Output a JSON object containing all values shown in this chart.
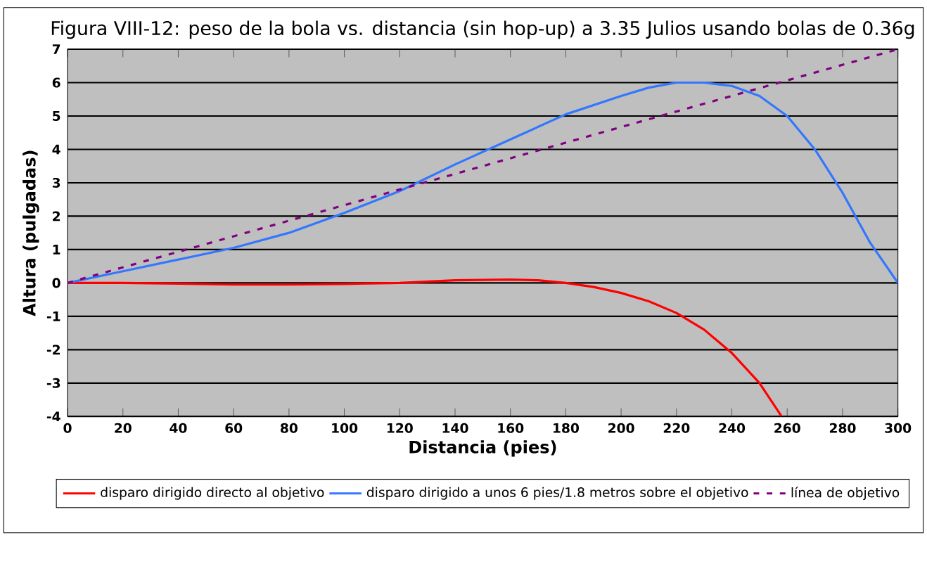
{
  "chart_data": {
    "type": "line",
    "title": "Figura VIII-12: peso de la bola vs. distancia (sin hop-up) a 3.35 Julios usando bolas de 0.36g",
    "xlabel": "Distancia (pies)",
    "ylabel": "Altura (pulgadas)",
    "xlim": [
      0,
      300
    ],
    "xticks": [
      0,
      20,
      40,
      60,
      80,
      100,
      120,
      140,
      160,
      180,
      200,
      220,
      240,
      260,
      280,
      300
    ],
    "ylim": [
      -4,
      7
    ],
    "yticks": [
      -4,
      -3,
      -2,
      -1,
      0,
      1,
      2,
      3,
      4,
      5,
      6,
      7
    ],
    "grid": "y",
    "legend": "bottom",
    "series": [
      {
        "name": "disparo dirigido directo al objetivo",
        "color": "#ff0000",
        "line_style": "solid",
        "x": [
          0,
          20,
          40,
          60,
          80,
          100,
          120,
          140,
          160,
          170,
          180,
          190,
          200,
          210,
          220,
          230,
          240,
          250,
          258
        ],
        "values": [
          0,
          0,
          -0.02,
          -0.05,
          -0.05,
          -0.03,
          0,
          0.08,
          0.1,
          0.08,
          0,
          -0.12,
          -0.3,
          -0.55,
          -0.9,
          -1.4,
          -2.1,
          -3,
          -4
        ]
      },
      {
        "name": "disparo dirigido a unos 6 pies/1.8 metros sobre el objetivo",
        "color": "#3377ff",
        "line_style": "solid",
        "x": [
          0,
          20,
          40,
          60,
          80,
          100,
          120,
          140,
          160,
          180,
          200,
          210,
          220,
          230,
          240,
          250,
          260,
          270,
          280,
          290,
          300
        ],
        "values": [
          0,
          0.35,
          0.7,
          1.05,
          1.5,
          2.1,
          2.75,
          3.55,
          4.3,
          5.05,
          5.6,
          5.85,
          6.0,
          6.0,
          5.9,
          5.6,
          5.0,
          4.0,
          2.7,
          1.2,
          0
        ]
      },
      {
        "name": "línea de objetivo",
        "color": "#800080",
        "line_style": "dashed",
        "x": [
          0,
          100,
          200,
          300
        ],
        "values": [
          0,
          2.33,
          4.67,
          7
        ]
      }
    ]
  }
}
